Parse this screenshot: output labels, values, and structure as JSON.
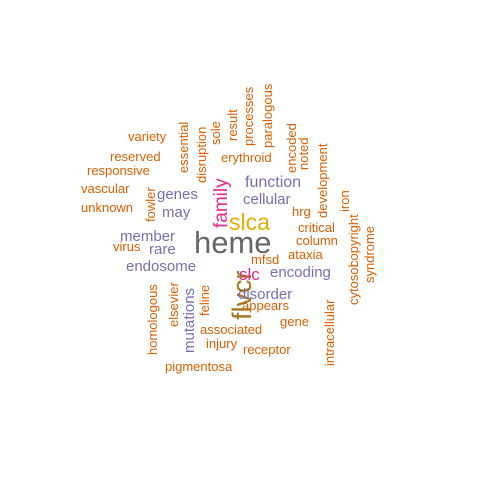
{
  "palette": {
    "orange": "#d95f02",
    "purple": "#7570b3",
    "magenta": "#e7298a",
    "gold": "#e6ab02",
    "gray": "#666666",
    "olive": "#a6761d"
  },
  "words": [
    {
      "text": "heme",
      "color": "gray",
      "vertical": false
    },
    {
      "text": "flvcr",
      "color": "olive",
      "vertical": true
    },
    {
      "text": "slca",
      "color": "gold",
      "vertical": false
    },
    {
      "text": "family",
      "color": "magenta",
      "vertical": true
    },
    {
      "text": "slc",
      "color": "magenta",
      "vertical": false
    },
    {
      "text": "function",
      "color": "purple",
      "vertical": false
    },
    {
      "text": "cellular",
      "color": "purple",
      "vertical": false
    },
    {
      "text": "genes",
      "color": "purple",
      "vertical": false
    },
    {
      "text": "may",
      "color": "purple",
      "vertical": false
    },
    {
      "text": "member",
      "color": "purple",
      "vertical": false
    },
    {
      "text": "rare",
      "color": "purple",
      "vertical": false
    },
    {
      "text": "endosome",
      "color": "purple",
      "vertical": false
    },
    {
      "text": "encoding",
      "color": "purple",
      "vertical": false
    },
    {
      "text": "disorder",
      "color": "purple",
      "vertical": false
    },
    {
      "text": "mutations",
      "color": "purple",
      "vertical": true
    },
    {
      "text": "variety",
      "color": "orange",
      "vertical": false
    },
    {
      "text": "reserved",
      "color": "orange",
      "vertical": false
    },
    {
      "text": "responsive",
      "color": "orange",
      "vertical": false
    },
    {
      "text": "vascular",
      "color": "orange",
      "vertical": false
    },
    {
      "text": "unknown",
      "color": "orange",
      "vertical": false
    },
    {
      "text": "fowler",
      "color": "orange",
      "vertical": true
    },
    {
      "text": "virus",
      "color": "orange",
      "vertical": false
    },
    {
      "text": "homologous",
      "color": "orange",
      "vertical": true
    },
    {
      "text": "elsevier",
      "color": "orange",
      "vertical": true
    },
    {
      "text": "feline",
      "color": "orange",
      "vertical": true
    },
    {
      "text": "essential",
      "color": "orange",
      "vertical": true
    },
    {
      "text": "disruption",
      "color": "orange",
      "vertical": true
    },
    {
      "text": "sole",
      "color": "orange",
      "vertical": true
    },
    {
      "text": "result",
      "color": "orange",
      "vertical": true
    },
    {
      "text": "processes",
      "color": "orange",
      "vertical": true
    },
    {
      "text": "paralogous",
      "color": "orange",
      "vertical": true
    },
    {
      "text": "erythroid",
      "color": "orange",
      "vertical": false
    },
    {
      "text": "encoded",
      "color": "orange",
      "vertical": true
    },
    {
      "text": "noted",
      "color": "orange",
      "vertical": true
    },
    {
      "text": "development",
      "color": "orange",
      "vertical": true
    },
    {
      "text": "hrg",
      "color": "orange",
      "vertical": false
    },
    {
      "text": "iron",
      "color": "orange",
      "vertical": true
    },
    {
      "text": "critical",
      "color": "orange",
      "vertical": false
    },
    {
      "text": "column",
      "color": "orange",
      "vertical": false
    },
    {
      "text": "syndrome",
      "color": "orange",
      "vertical": true
    },
    {
      "text": "copyright",
      "color": "orange",
      "vertical": true
    },
    {
      "text": "cytosol",
      "color": "orange",
      "vertical": true
    },
    {
      "text": "mfsd",
      "color": "orange",
      "vertical": false
    },
    {
      "text": "ataxia",
      "color": "orange",
      "vertical": false
    },
    {
      "text": "appears",
      "color": "orange",
      "vertical": false
    },
    {
      "text": "gene",
      "color": "orange",
      "vertical": false
    },
    {
      "text": "intracellular",
      "color": "orange",
      "vertical": true
    },
    {
      "text": "associated",
      "color": "orange",
      "vertical": false
    },
    {
      "text": "injury",
      "color": "orange",
      "vertical": false
    },
    {
      "text": "receptor",
      "color": "orange",
      "vertical": false
    },
    {
      "text": "pigmentosa",
      "color": "orange",
      "vertical": false
    }
  ]
}
